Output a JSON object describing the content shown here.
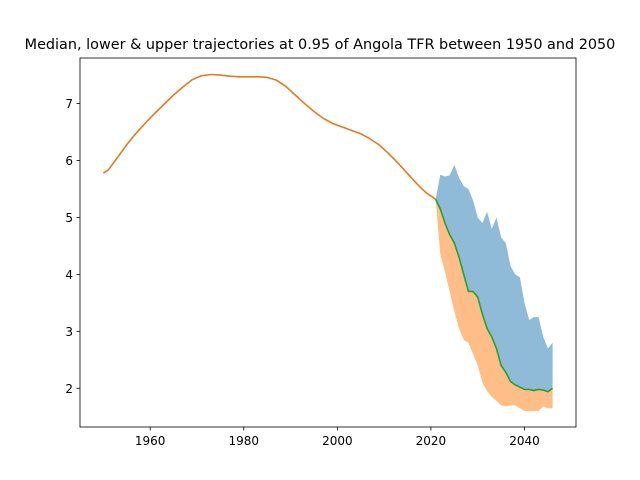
{
  "chart_data": {
    "type": "line",
    "title": "Median, lower & upper trajectories at 0.95 of Angola TFR between 1950 and 2050",
    "xlabel": "",
    "ylabel": "",
    "xlim": [
      1945,
      2051
    ],
    "ylim": [
      1.32,
      7.8
    ],
    "x_ticks": [
      1960,
      1980,
      2000,
      2020,
      2040
    ],
    "y_ticks": [
      2,
      3,
      4,
      5,
      6,
      7
    ],
    "grid": false,
    "legend": "none",
    "colors": {
      "historical": "#e07b22",
      "median": "#2ca02c",
      "upper_band": "#8fbbd9",
      "lower_band": "#ffbe87"
    },
    "series": [
      {
        "role": "historical",
        "x": [
          1950,
          1951,
          1953,
          1955,
          1957,
          1959,
          1961,
          1963,
          1965,
          1967,
          1969,
          1971,
          1973,
          1975,
          1977,
          1979,
          1981,
          1983,
          1985,
          1987,
          1989,
          1991,
          1993,
          1995,
          1997,
          1999,
          2001,
          2003,
          2005,
          2007,
          2009,
          2011,
          2013,
          2015,
          2017,
          2019,
          2021
        ],
        "y": [
          5.78,
          5.83,
          6.05,
          6.28,
          6.48,
          6.66,
          6.83,
          6.99,
          7.15,
          7.29,
          7.42,
          7.49,
          7.51,
          7.5,
          7.48,
          7.47,
          7.47,
          7.47,
          7.46,
          7.41,
          7.3,
          7.15,
          7.0,
          6.86,
          6.74,
          6.65,
          6.59,
          6.53,
          6.47,
          6.38,
          6.27,
          6.12,
          5.95,
          5.77,
          5.59,
          5.43,
          5.32
        ]
      },
      {
        "role": "median",
        "x": [
          2021,
          2022,
          2023,
          2024,
          2025,
          2026,
          2027,
          2028,
          2029,
          2030,
          2031,
          2032,
          2033,
          2034,
          2035,
          2036,
          2037,
          2038,
          2039,
          2040,
          2041,
          2042,
          2043,
          2044,
          2045,
          2046
        ],
        "y": [
          5.32,
          5.15,
          4.9,
          4.7,
          4.55,
          4.3,
          4.0,
          3.7,
          3.7,
          3.6,
          3.3,
          3.05,
          2.9,
          2.7,
          2.4,
          2.28,
          2.12,
          2.06,
          2.02,
          1.98,
          1.98,
          1.96,
          1.98,
          1.97,
          1.94,
          2.0
        ]
      },
      {
        "role": "upper",
        "x": [
          2021,
          2022,
          2023,
          2024,
          2025,
          2026,
          2027,
          2028,
          2029,
          2030,
          2031,
          2032,
          2033,
          2034,
          2035,
          2036,
          2037,
          2038,
          2039,
          2040,
          2041,
          2042,
          2043,
          2044,
          2045,
          2046
        ],
        "y": [
          5.32,
          5.75,
          5.72,
          5.74,
          5.92,
          5.7,
          5.55,
          5.5,
          5.3,
          5.0,
          4.9,
          5.1,
          4.8,
          5.0,
          4.65,
          4.55,
          4.15,
          4.0,
          3.95,
          3.5,
          3.2,
          3.25,
          3.25,
          2.9,
          2.7,
          2.8
        ]
      },
      {
        "role": "lower",
        "x": [
          2021,
          2022,
          2023,
          2024,
          2025,
          2026,
          2027,
          2028,
          2029,
          2030,
          2031,
          2032,
          2033,
          2034,
          2035,
          2036,
          2037,
          2038,
          2039,
          2040,
          2041,
          2042,
          2043,
          2044,
          2045,
          2046
        ],
        "y": [
          5.32,
          4.35,
          4.05,
          3.7,
          3.35,
          3.05,
          2.85,
          2.8,
          2.6,
          2.4,
          2.1,
          1.95,
          1.85,
          1.78,
          1.7,
          1.68,
          1.7,
          1.7,
          1.65,
          1.6,
          1.6,
          1.6,
          1.6,
          1.68,
          1.65,
          1.65
        ]
      }
    ]
  }
}
